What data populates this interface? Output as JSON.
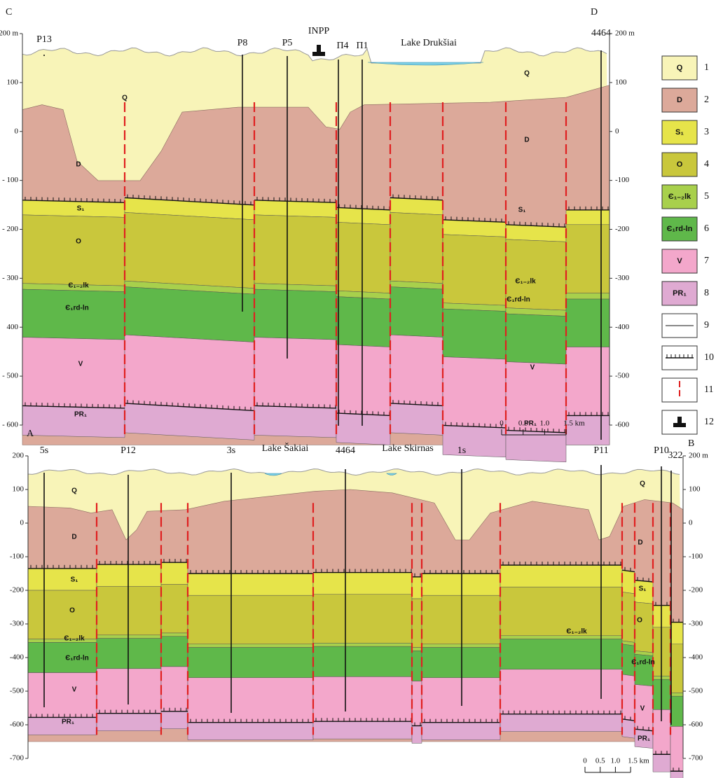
{
  "top_section": {
    "corner_left": "C",
    "corner_right": "D",
    "left_axis": [
      "200 m",
      "100",
      "0",
      "- 100",
      "- 200",
      "- 300",
      "400",
      "- 500",
      "- 600"
    ],
    "right_axis": [
      "200 m",
      "100",
      "0",
      "-100",
      "-200",
      "-300",
      "-400",
      "-500",
      "-600"
    ],
    "wells": [
      "P13",
      "P8",
      "P5",
      "П4",
      "П1",
      "4464"
    ],
    "plant": "INPP",
    "lake": "Lake Drukšiai",
    "layer_labels": [
      "Q",
      "Q",
      "D",
      "D",
      "S₁",
      "S₁",
      "O",
      "Є₁₋₂lk",
      "Є₁₋₂lk",
      "Є₁rd-ln",
      "Є₁rd-ln",
      "V",
      "V",
      "PR₁",
      "PR₁"
    ],
    "scale_bar": [
      "0",
      "0.5",
      "1.0",
      "1.5 km"
    ]
  },
  "bottom_section": {
    "corner_left": "A",
    "corner_right": "B",
    "left_axis": [
      "200",
      "100",
      "0",
      "-100",
      "-200",
      "-300",
      "-400",
      "-500",
      "-600",
      "-700"
    ],
    "right_axis": [
      "200 m",
      "100",
      "0",
      "-100",
      "-200",
      "-300",
      "-400",
      "-500",
      "-600",
      "-700"
    ],
    "wells": [
      "5s",
      "P12",
      "3s",
      "4464",
      "1s",
      "P11",
      "P10",
      "322"
    ],
    "lakes": [
      "Lake Šakiai",
      "Lake Skirnas"
    ],
    "layer_labels": [
      "Q",
      "Q",
      "D",
      "D",
      "S₁",
      "S₁",
      "O",
      "O",
      "Є₁₋₂lk",
      "Є₁₋₂lk",
      "Є₁rd-ln",
      "Є₁rd-ln",
      "V",
      "V",
      "PR₁",
      "PR₁"
    ],
    "scale_bar": [
      "0",
      "0.5",
      "1.0",
      "1.5 km"
    ]
  },
  "legend": [
    {
      "symbol": "Q",
      "number": "1"
    },
    {
      "symbol": "D",
      "number": "2"
    },
    {
      "symbol": "S₁",
      "number": "3"
    },
    {
      "symbol": "O",
      "number": "4"
    },
    {
      "symbol": "Є₁₋₂lk",
      "number": "5"
    },
    {
      "symbol": "Є₁rd-ln",
      "number": "6"
    },
    {
      "symbol": "V",
      "number": "7"
    },
    {
      "symbol": "PR₁",
      "number": "8"
    },
    {
      "number": "9"
    },
    {
      "number": "10"
    },
    {
      "number": "11"
    },
    {
      "number": "12"
    }
  ]
}
